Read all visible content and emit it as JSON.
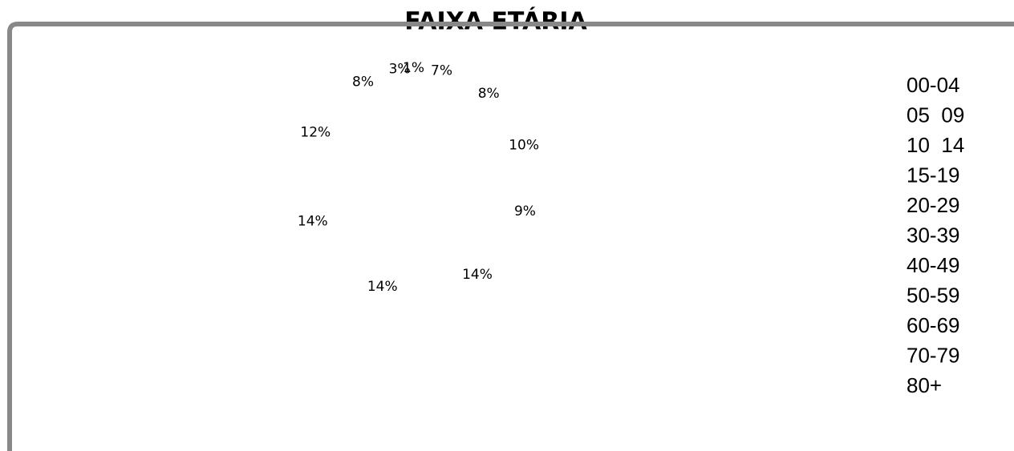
{
  "chart_data": {
    "type": "pie",
    "title": "FAIXA ETÁRIA",
    "categories": [
      "00-04",
      "05  09",
      "10  14",
      "15-19",
      "20-29",
      "30-39",
      "40-49",
      "50-59",
      "60-69",
      "70-79",
      "80+"
    ],
    "values": [
      7,
      8,
      10,
      9,
      14,
      14,
      14,
      12,
      8,
      3,
      1
    ],
    "value_labels": [
      "7%",
      "8%",
      "10%",
      "9%",
      "14%",
      "14%",
      "14%",
      "12%",
      "8%",
      "3%",
      "1%"
    ]
  }
}
